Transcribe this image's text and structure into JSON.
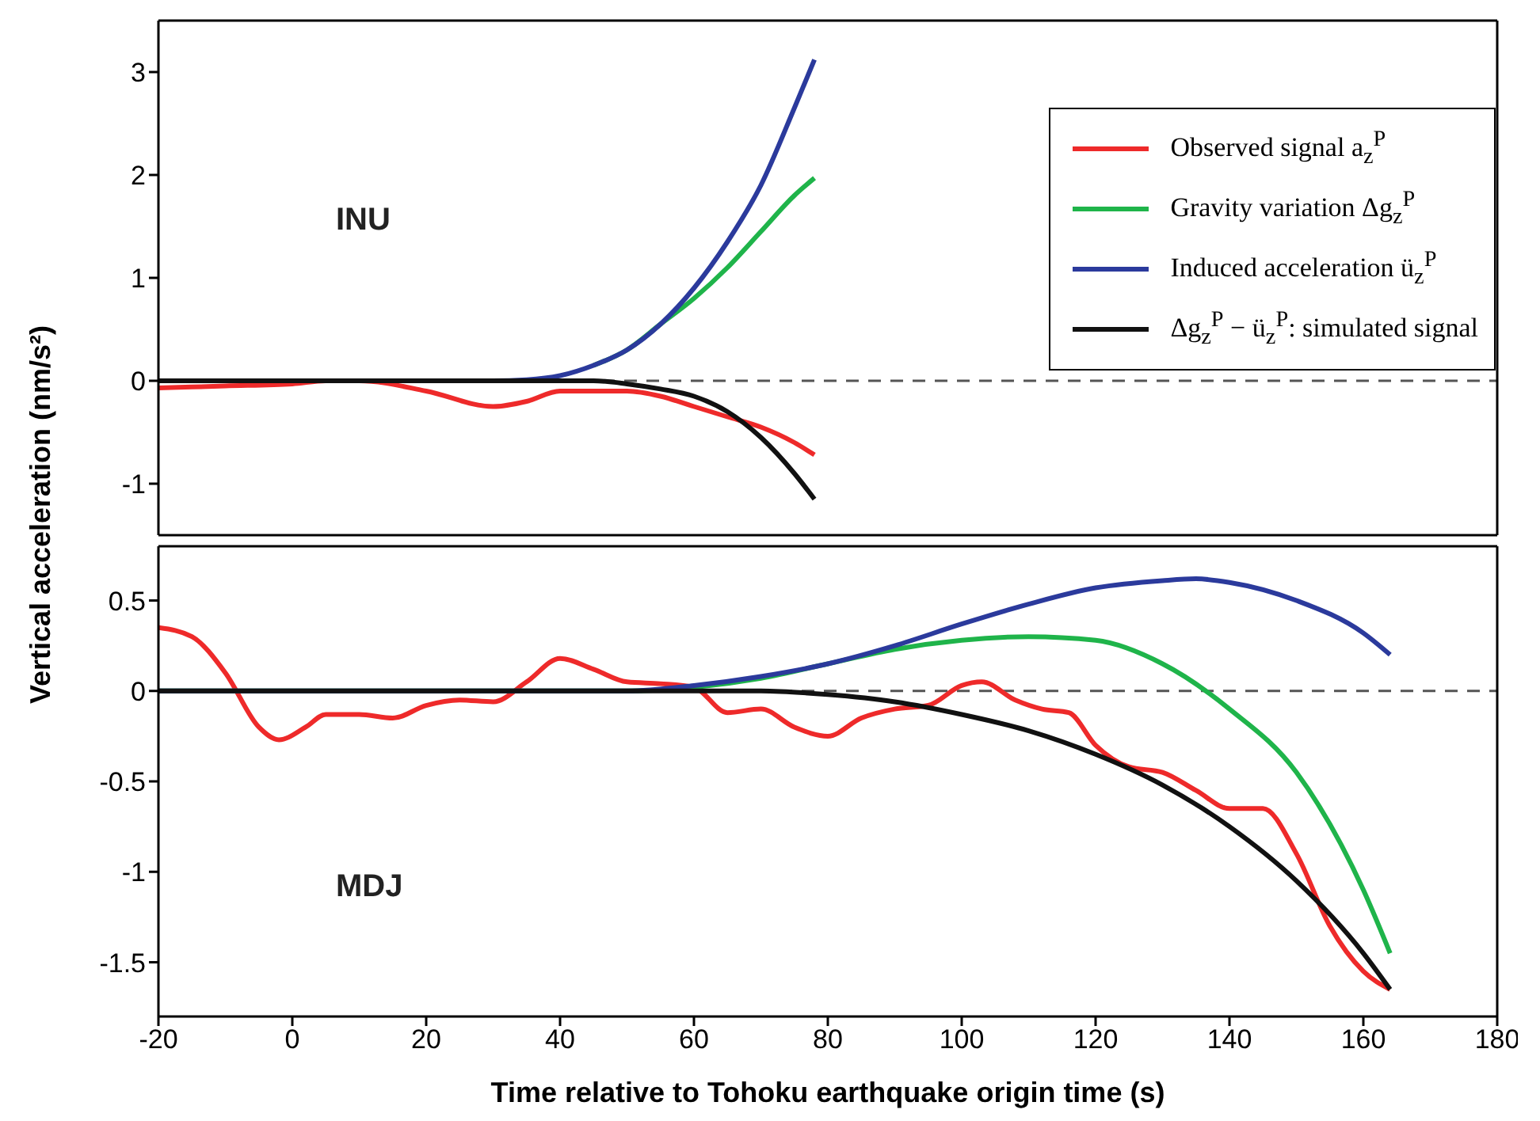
{
  "chart_data": [
    {
      "type": "line",
      "ylabel": "Vertical acceleration (nm/s²)",
      "xlim": [
        -20,
        180
      ],
      "xticks": [
        -20,
        0,
        20,
        40,
        60,
        80,
        100,
        120,
        140,
        160,
        180
      ],
      "ylim": [
        -1.5,
        3.5
      ],
      "yticks": [
        -1,
        0,
        1,
        2,
        3
      ],
      "tick_labels": "y",
      "legend": "top right",
      "annotations": [
        "INU"
      ],
      "ref_lines": [
        {
          "axis": "y",
          "value": 0,
          "color": "#555555",
          "line_style": "dashed"
        }
      ],
      "series": [
        {
          "name": "Observed signal a$_{z}$$^{P}$",
          "color": "#ee2a2a",
          "x": [
            -20,
            -10,
            0,
            5,
            10,
            20,
            30,
            35,
            40,
            50,
            55,
            60,
            65,
            70,
            75,
            78
          ],
          "values": [
            -0.07,
            -0.05,
            -0.03,
            0,
            0,
            -0.1,
            -0.25,
            -0.2,
            -0.1,
            -0.1,
            -0.15,
            -0.25,
            -0.35,
            -0.45,
            -0.6,
            -0.72
          ]
        },
        {
          "name": "Gravity variation Δg$_{z}$$^{P}$",
          "color": "#1fb44a",
          "x": [
            45,
            50,
            55,
            60,
            65,
            70,
            75,
            78
          ],
          "values": [
            0.15,
            0.3,
            0.55,
            0.8,
            1.1,
            1.45,
            1.8,
            1.97
          ]
        },
        {
          "name": "Induced acceleration ü$_{z}$$^{P}$",
          "color": "#2b3a9c",
          "x": [
            -20,
            30,
            35,
            40,
            45,
            50,
            55,
            60,
            65,
            70,
            75,
            78
          ],
          "values": [
            0,
            0,
            0.01,
            0.05,
            0.15,
            0.3,
            0.55,
            0.9,
            1.35,
            1.9,
            2.65,
            3.12
          ]
        },
        {
          "name": "Δg$_{z}$$^{P}$ − ü$_{z}$$^{P}$: simulated signal",
          "color": "#111111",
          "x": [
            -20,
            45,
            50,
            55,
            60,
            65,
            70,
            75,
            78
          ],
          "values": [
            0,
            0,
            -0.03,
            -0.08,
            -0.15,
            -0.3,
            -0.55,
            -0.9,
            -1.15
          ]
        }
      ]
    },
    {
      "type": "line",
      "xlabel": "Time relative to Tohoku earthquake origin time (s)",
      "xlim": [
        -20,
        180
      ],
      "xticks": [
        -20,
        0,
        20,
        40,
        60,
        80,
        100,
        120,
        140,
        160,
        180
      ],
      "ylim": [
        -1.8,
        0.8
      ],
      "yticks": [
        -1.5,
        -1,
        -0.5,
        0,
        0.5
      ],
      "annotations": [
        "MDJ"
      ],
      "ref_lines": [
        {
          "axis": "y",
          "value": 0,
          "color": "#555555",
          "line_style": "dashed"
        }
      ],
      "series": [
        {
          "color": "#ee2a2a",
          "x": [
            -20,
            -15,
            -10,
            -5,
            -2,
            2,
            5,
            10,
            15,
            20,
            25,
            30,
            35,
            40,
            45,
            50,
            55,
            60,
            65,
            70,
            75,
            80,
            85,
            90,
            95,
            100,
            103,
            108,
            112,
            116,
            120,
            125,
            130,
            135,
            140,
            145,
            150,
            155,
            160,
            164
          ],
          "values": [
            0.35,
            0.3,
            0.1,
            -0.2,
            -0.27,
            -0.2,
            -0.13,
            -0.13,
            -0.15,
            -0.08,
            -0.05,
            -0.06,
            0.05,
            0.18,
            0.12,
            0.05,
            0.04,
            0.02,
            -0.12,
            -0.1,
            -0.2,
            -0.25,
            -0.15,
            -0.1,
            -0.08,
            0.03,
            0.05,
            -0.05,
            -0.1,
            -0.12,
            -0.3,
            -0.42,
            -0.45,
            -0.55,
            -0.65,
            -0.65,
            -0.9,
            -1.3,
            -1.55,
            -1.65
          ]
        },
        {
          "color": "#1fb44a",
          "x": [
            -20,
            50,
            60,
            70,
            80,
            90,
            100,
            110,
            120,
            130,
            140,
            150,
            160,
            164
          ],
          "values": [
            0,
            0,
            0.02,
            0.07,
            0.15,
            0.23,
            0.28,
            0.3,
            0.28,
            0.15,
            -0.1,
            -0.45,
            -1.1,
            -1.45
          ]
        },
        {
          "color": "#2b3a9c",
          "x": [
            -20,
            50,
            60,
            70,
            80,
            90,
            100,
            110,
            120,
            130,
            135,
            140,
            150,
            160,
            164
          ],
          "values": [
            0,
            0,
            0.03,
            0.08,
            0.15,
            0.25,
            0.37,
            0.48,
            0.57,
            0.61,
            0.62,
            0.6,
            0.5,
            0.32,
            0.2
          ]
        },
        {
          "color": "#111111",
          "x": [
            -20,
            70,
            80,
            90,
            100,
            110,
            120,
            130,
            140,
            150,
            160,
            164
          ],
          "values": [
            0,
            0,
            -0.02,
            -0.06,
            -0.13,
            -0.22,
            -0.35,
            -0.52,
            -0.75,
            -1.05,
            -1.45,
            -1.65
          ]
        }
      ]
    }
  ]
}
